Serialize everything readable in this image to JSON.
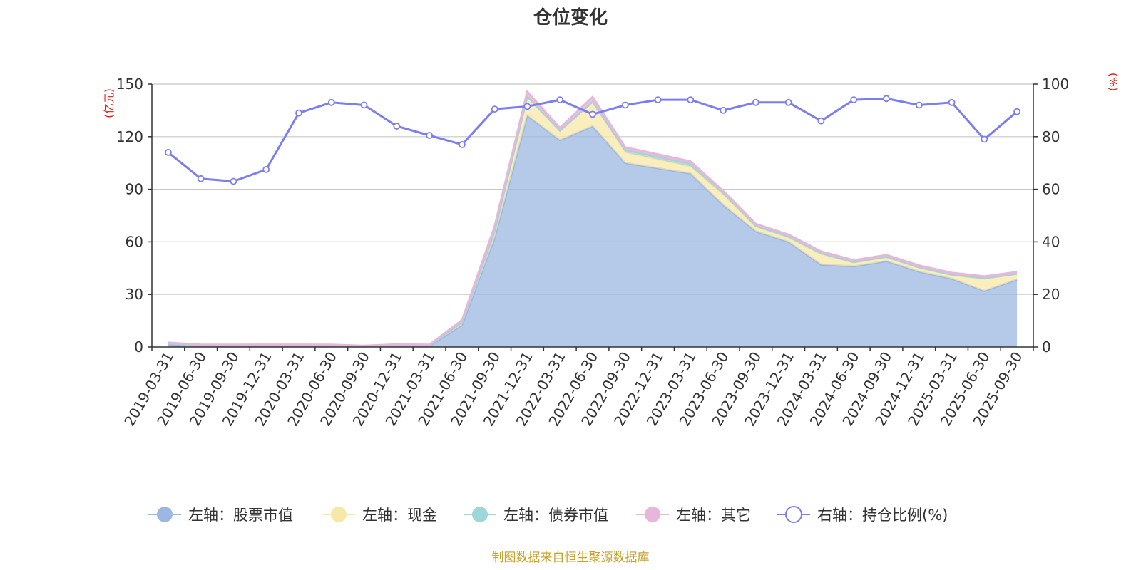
{
  "chart_data": {
    "type": "area",
    "title": "仓位变化",
    "left_unit": "(亿元)",
    "right_unit": "(%)",
    "left_ylim": [
      0,
      150
    ],
    "left_ticks": [
      "0",
      "30",
      "60",
      "90",
      "120",
      "150"
    ],
    "right_ylim": [
      0,
      100
    ],
    "right_ticks": [
      "0",
      "20",
      "40",
      "60",
      "80",
      "100"
    ],
    "categories": [
      "2019-03-31",
      "2019-06-30",
      "2019-09-30",
      "2019-12-31",
      "2020-03-31",
      "2020-06-30",
      "2020-09-30",
      "2020-12-31",
      "2021-03-31",
      "2021-06-30",
      "2021-09-30",
      "2021-12-31",
      "2022-03-31",
      "2022-06-30",
      "2022-09-30",
      "2022-12-31",
      "2023-03-31",
      "2023-06-30",
      "2023-09-30",
      "2023-12-31",
      "2024-03-31",
      "2024-06-30",
      "2024-09-30",
      "2024-12-31",
      "2025-03-31",
      "2025-06-30",
      "2025-09-30"
    ],
    "series": [
      {
        "name": "左轴：股票市值",
        "axis": "left",
        "color": "#9cb8e2",
        "values": [
          1.6,
          0.6,
          0.6,
          0.7,
          0.8,
          0.8,
          0.4,
          0.7,
          0.6,
          12.6,
          62.5,
          132,
          118,
          126,
          105,
          102,
          99,
          81,
          66,
          60,
          47,
          46,
          49,
          43,
          39,
          32,
          38.5
        ]
      },
      {
        "name": "左轴：现金",
        "axis": "left",
        "color": "#f8e8a8",
        "values": [
          0.6,
          0.4,
          0.4,
          0.4,
          0.2,
          0.2,
          0.1,
          0.5,
          0.4,
          1.5,
          4,
          11,
          5.5,
          14,
          6,
          5,
          4,
          6,
          2.5,
          2.4,
          6,
          2,
          2,
          2,
          2,
          7,
          3
        ]
      },
      {
        "name": "左轴：债券市值",
        "axis": "left",
        "color": "#9fd6d8",
        "values": [
          0,
          0,
          0,
          0,
          0,
          0,
          0,
          0,
          0,
          0,
          0,
          0,
          0,
          0,
          1.5,
          1.5,
          1.5,
          1,
          0.7,
          0.7,
          0.5,
          0.5,
          0.5,
          0.5,
          0.3,
          0.3,
          0.3
        ]
      },
      {
        "name": "左轴：其它",
        "axis": "left",
        "color": "#e6b7db",
        "values": [
          0.3,
          0.3,
          0.3,
          0.3,
          0.4,
          0.3,
          0.2,
          0.3,
          0.3,
          1.2,
          2.4,
          2.6,
          1.5,
          2.6,
          1.4,
          1.4,
          1.4,
          1,
          1,
          1,
          1,
          1,
          1,
          1,
          1,
          1,
          1
        ]
      },
      {
        "name": "右轴：持仓比例(%)",
        "axis": "right",
        "color": "#7b7ef0",
        "values": [
          74,
          64,
          63,
          67.5,
          89,
          93,
          92,
          84,
          80.5,
          77,
          90.5,
          91.5,
          94,
          88.5,
          92,
          94,
          94,
          90,
          93,
          93,
          86,
          94,
          94.5,
          92,
          93,
          79,
          89.5
        ]
      }
    ]
  },
  "footer": "制图数据来自恒生聚源数据库"
}
